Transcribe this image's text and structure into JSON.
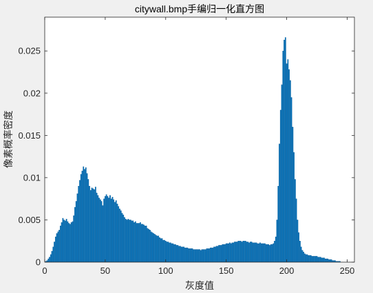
{
  "chart_data": {
    "type": "bar",
    "title": "citywall.bmp手编归一化直方图",
    "xlabel": "灰度值",
    "ylabel": "像素概率密度",
    "xlim": [
      0,
      256
    ],
    "ylim": [
      0,
      0.029
    ],
    "xticks": [
      0,
      50,
      100,
      150,
      200,
      250
    ],
    "xtick_labels": [
      "0",
      "50",
      "100",
      "150",
      "200",
      "250"
    ],
    "yticks": [
      0,
      0.005,
      0.01,
      0.015,
      0.02,
      0.025
    ],
    "ytick_labels": [
      "0",
      "0.005",
      "0.01",
      "0.015",
      "0.02",
      "0.025"
    ],
    "grid": false,
    "bar_color": "#0072bd",
    "x": [
      0,
      1,
      2,
      3,
      4,
      5,
      6,
      7,
      8,
      9,
      10,
      11,
      12,
      13,
      14,
      15,
      16,
      17,
      18,
      19,
      20,
      21,
      22,
      23,
      24,
      25,
      26,
      27,
      28,
      29,
      30,
      31,
      32,
      33,
      34,
      35,
      36,
      37,
      38,
      39,
      40,
      41,
      42,
      43,
      44,
      45,
      46,
      47,
      48,
      49,
      50,
      51,
      52,
      53,
      54,
      55,
      56,
      57,
      58,
      59,
      60,
      61,
      62,
      63,
      64,
      65,
      66,
      67,
      68,
      69,
      70,
      71,
      72,
      73,
      74,
      75,
      76,
      77,
      78,
      79,
      80,
      81,
      82,
      83,
      84,
      85,
      86,
      87,
      88,
      89,
      90,
      91,
      92,
      93,
      94,
      95,
      96,
      97,
      98,
      99,
      100,
      101,
      102,
      103,
      104,
      105,
      106,
      107,
      108,
      109,
      110,
      111,
      112,
      113,
      114,
      115,
      116,
      117,
      118,
      119,
      120,
      121,
      122,
      123,
      124,
      125,
      126,
      127,
      128,
      129,
      130,
      131,
      132,
      133,
      134,
      135,
      136,
      137,
      138,
      139,
      140,
      141,
      142,
      143,
      144,
      145,
      146,
      147,
      148,
      149,
      150,
      151,
      152,
      153,
      154,
      155,
      156,
      157,
      158,
      159,
      160,
      161,
      162,
      163,
      164,
      165,
      166,
      167,
      168,
      169,
      170,
      171,
      172,
      173,
      174,
      175,
      176,
      177,
      178,
      179,
      180,
      181,
      182,
      183,
      184,
      185,
      186,
      187,
      188,
      189,
      190,
      191,
      192,
      193,
      194,
      195,
      196,
      197,
      198,
      199,
      200,
      201,
      202,
      203,
      204,
      205,
      206,
      207,
      208,
      209,
      210,
      211,
      212,
      213,
      214,
      215,
      216,
      217,
      218,
      219,
      220,
      221,
      222,
      223,
      224,
      225,
      226,
      227,
      228,
      229,
      230,
      231,
      232,
      233,
      234,
      235,
      236,
      237,
      238,
      239,
      240,
      241,
      242,
      243,
      244,
      245,
      246,
      247,
      248,
      249,
      250,
      251,
      252,
      253,
      254,
      255
    ],
    "values": [
      0,
      0.0001,
      0.0002,
      0.0004,
      0.0006,
      0.0009,
      0.0013,
      0.0018,
      0.0024,
      0.003,
      0.0034,
      0.0036,
      0.0038,
      0.0043,
      0.0047,
      0.0052,
      0.005,
      0.0049,
      0.0051,
      0.0048,
      0.0046,
      0.0045,
      0.0047,
      0.0048,
      0.0055,
      0.0065,
      0.0072,
      0.0081,
      0.009,
      0.0097,
      0.0104,
      0.0108,
      0.0113,
      0.011,
      0.0112,
      0.0105,
      0.0098,
      0.009,
      0.0085,
      0.0088,
      0.0087,
      0.0086,
      0.0089,
      0.0082,
      0.0079,
      0.0076,
      0.0074,
      0.0072,
      0.0067,
      0.0075,
      0.0078,
      0.008,
      0.0078,
      0.0076,
      0.0079,
      0.0075,
      0.0077,
      0.0074,
      0.0071,
      0.0073,
      0.0069,
      0.0066,
      0.0063,
      0.0061,
      0.0058,
      0.0056,
      0.0053,
      0.0051,
      0.005,
      0.0051,
      0.005,
      0.005,
      0.0049,
      0.0049,
      0.0047,
      0.0048,
      0.0046,
      0.0046,
      0.0046,
      0.0047,
      0.0045,
      0.0045,
      0.0044,
      0.0043,
      0.0043,
      0.004,
      0.0039,
      0.0038,
      0.0036,
      0.0035,
      0.0034,
      0.0033,
      0.0032,
      0.0031,
      0.0031,
      0.0029,
      0.0028,
      0.0028,
      0.0026,
      0.0026,
      0.0025,
      0.0024,
      0.0024,
      0.0023,
      0.0023,
      0.0022,
      0.0022,
      0.0021,
      0.0021,
      0.002,
      0.002,
      0.0019,
      0.0019,
      0.0018,
      0.0018,
      0.0018,
      0.0017,
      0.0017,
      0.0017,
      0.0016,
      0.0016,
      0.0016,
      0.0016,
      0.0015,
      0.0015,
      0.0015,
      0.0015,
      0.0015,
      0.0015,
      0.0014,
      0.0015,
      0.0015,
      0.0015,
      0.0015,
      0.0016,
      0.0016,
      0.0016,
      0.0017,
      0.0017,
      0.0017,
      0.0018,
      0.0018,
      0.0019,
      0.0019,
      0.002,
      0.002,
      0.002,
      0.0021,
      0.0021,
      0.0021,
      0.0022,
      0.0022,
      0.0022,
      0.0023,
      0.0022,
      0.0023,
      0.0023,
      0.0024,
      0.0024,
      0.0024,
      0.0025,
      0.0025,
      0.0025,
      0.0024,
      0.0025,
      0.0025,
      0.0025,
      0.0024,
      0.0024,
      0.0023,
      0.0024,
      0.0024,
      0.0023,
      0.0023,
      0.0023,
      0.0023,
      0.0022,
      0.0022,
      0.0023,
      0.0022,
      0.0022,
      0.0022,
      0.0022,
      0.0021,
      0.0021,
      0.0021,
      0.002,
      0.0021,
      0.0021,
      0.0022,
      0.0025,
      0.003,
      0.005,
      0.009,
      0.014,
      0.018,
      0.021,
      0.025,
      0.0263,
      0.0266,
      0.0235,
      0.024,
      0.0228,
      0.0215,
      0.0195,
      0.016,
      0.013,
      0.0098,
      0.0075,
      0.005,
      0.0035,
      0.0025,
      0.0018,
      0.0014,
      0.0012,
      0.001,
      0.0009,
      0.0009,
      0.0008,
      0.0008,
      0.0008,
      0.0007,
      0.0007,
      0.0007,
      0.0007,
      0.0007,
      0.0006,
      0.0006,
      0.0006,
      0.0005,
      0.0005,
      0.0005,
      0.0004,
      0.0004,
      0.0004,
      0.0003,
      0.0003,
      0.0003,
      0.0002,
      0.0002,
      0.0002,
      0.0001,
      0.0001,
      0.0001,
      0.0001,
      0,
      0,
      0,
      0,
      0,
      0,
      0,
      0,
      0,
      0,
      0
    ]
  }
}
